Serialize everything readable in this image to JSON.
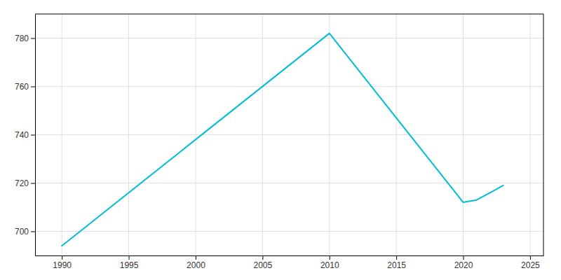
{
  "chart_data": {
    "type": "line",
    "x": [
      1990,
      2000,
      2010,
      2020,
      2021,
      2022,
      2023
    ],
    "values": [
      694,
      738,
      782,
      712,
      713,
      716,
      719
    ],
    "color": "#00BCD4",
    "xlim": [
      1988,
      2026
    ],
    "ylim": [
      690,
      790
    ],
    "xticks": [
      1990,
      1995,
      2000,
      2005,
      2010,
      2015,
      2020,
      2025
    ],
    "yticks": [
      700,
      720,
      740,
      760,
      780
    ],
    "grid": true
  }
}
